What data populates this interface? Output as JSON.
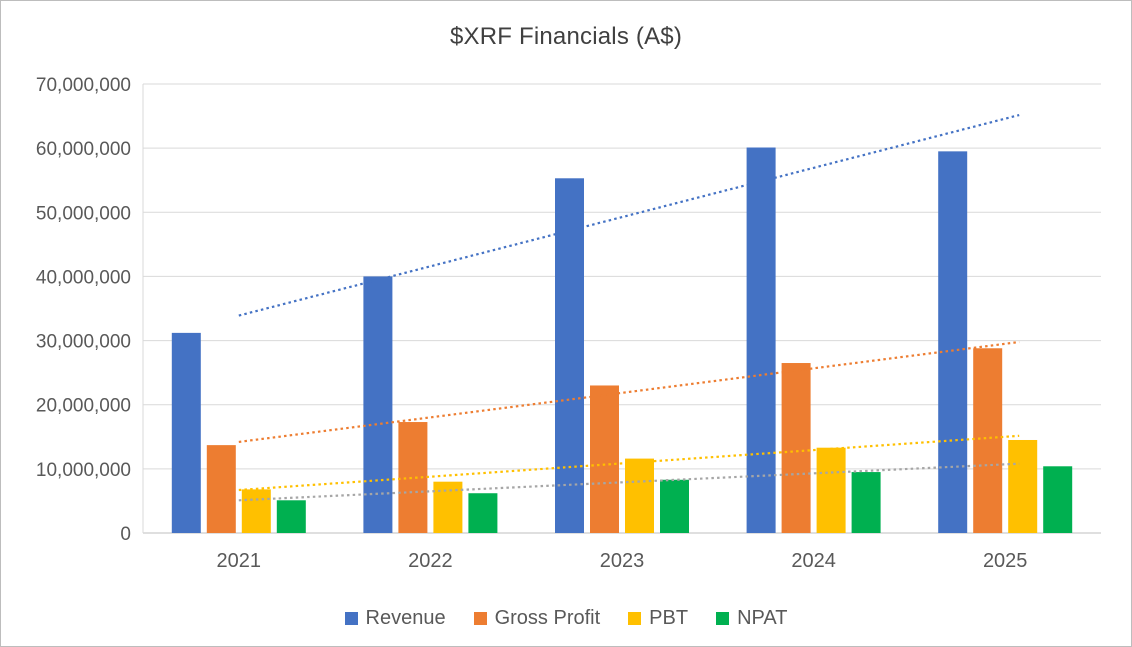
{
  "chart_data": {
    "type": "bar",
    "title": "$XRF Financials (A$)",
    "categories": [
      "2021",
      "2022",
      "2023",
      "2024",
      "2025"
    ],
    "series": [
      {
        "name": "Revenue",
        "color": "#4472C4",
        "trend_color": "#4472C4",
        "values": [
          31200000,
          40000000,
          55300000,
          60100000,
          59500000
        ],
        "trendline": [
          33900000,
          64600000
        ]
      },
      {
        "name": "Gross Profit",
        "color": "#ED7D31",
        "trend_color": "#ED7D31",
        "values": [
          13700000,
          17300000,
          23000000,
          26500000,
          28800000
        ],
        "trendline": [
          14200000,
          29500000
        ]
      },
      {
        "name": "PBT",
        "color": "#FFC000",
        "trend_color": "#FFC000",
        "values": [
          6800000,
          8000000,
          11600000,
          13300000,
          14500000
        ],
        "trendline": [
          6700000,
          15000000
        ]
      },
      {
        "name": "NPAT",
        "color": "#00B050",
        "trend_color": "#A6A6A6",
        "values": [
          5100000,
          6200000,
          8300000,
          9500000,
          10400000
        ],
        "trendline": [
          5100000,
          10700000
        ]
      }
    ],
    "ylim": [
      0,
      70000000
    ],
    "ytick_step": 10000000,
    "ytick_labels": [
      "0",
      "10,000,000",
      "20,000,000",
      "30,000,000",
      "40,000,000",
      "50,000,000",
      "60,000,000",
      "70,000,000"
    ],
    "grid": true,
    "legend_position": "bottom",
    "trendline_style": "dotted"
  }
}
